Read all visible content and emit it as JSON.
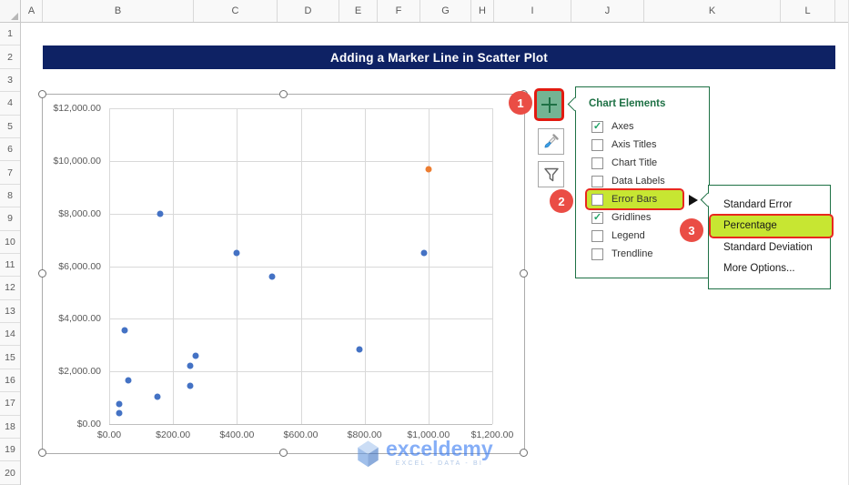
{
  "spreadsheet": {
    "column_headers": [
      "A",
      "B",
      "C",
      "D",
      "E",
      "F",
      "G",
      "H",
      "I",
      "J",
      "K",
      "L"
    ],
    "row_count": 20
  },
  "banner": {
    "title": "Adding a Marker Line in Scatter Plot"
  },
  "chart_data": {
    "type": "scatter",
    "title": "",
    "xlabel": "",
    "ylabel": "",
    "xlim": [
      0,
      1200
    ],
    "ylim": [
      0,
      12000
    ],
    "grid": true,
    "legend": false,
    "x_ticks": [
      "$0.00",
      "$200.00",
      "$400.00",
      "$600.00",
      "$800.00",
      "$1,000.00",
      "$1,200.00"
    ],
    "x_tick_values": [
      0,
      200,
      400,
      600,
      800,
      1000,
      1200
    ],
    "y_ticks": [
      "$0.00",
      "$2,000.00",
      "$4,000.00",
      "$6,000.00",
      "$8,000.00",
      "$10,000.00",
      "$12,000.00"
    ],
    "y_tick_values": [
      0,
      2000,
      4000,
      6000,
      8000,
      10000,
      12000
    ],
    "series": [
      {
        "name": "blue-series",
        "color": "#4472c4",
        "points": [
          [
            30,
            430
          ],
          [
            30,
            770
          ],
          [
            48,
            3550
          ],
          [
            60,
            1650
          ],
          [
            150,
            1050
          ],
          [
            160,
            8000
          ],
          [
            255,
            1450
          ],
          [
            255,
            2200
          ],
          [
            270,
            2600
          ],
          [
            400,
            6500
          ],
          [
            510,
            5600
          ],
          [
            785,
            2850
          ],
          [
            985,
            6500
          ]
        ]
      },
      {
        "name": "orange-point",
        "color": "#ed7d31",
        "points": [
          [
            1000,
            9700
          ]
        ]
      }
    ]
  },
  "side_toolbar": {
    "buttons": [
      {
        "icon": "plus-icon",
        "name": "chart-elements"
      },
      {
        "icon": "brush-icon",
        "name": "chart-styles"
      },
      {
        "icon": "funnel-icon",
        "name": "chart-filters"
      }
    ]
  },
  "chart_elements_menu": {
    "title": "Chart Elements",
    "items": [
      {
        "label": "Axes",
        "checked": true,
        "highlighted": false
      },
      {
        "label": "Axis Titles",
        "checked": false,
        "highlighted": false
      },
      {
        "label": "Chart Title",
        "checked": false,
        "highlighted": false
      },
      {
        "label": "Data Labels",
        "checked": false,
        "highlighted": false
      },
      {
        "label": "Error Bars",
        "checked": false,
        "highlighted": true,
        "has_submenu": true
      },
      {
        "label": "Gridlines",
        "checked": true,
        "highlighted": false
      },
      {
        "label": "Legend",
        "checked": false,
        "highlighted": false
      },
      {
        "label": "Trendline",
        "checked": false,
        "highlighted": false
      }
    ]
  },
  "error_bars_submenu": {
    "items": [
      {
        "label": "Standard Error",
        "highlighted": false
      },
      {
        "label": "Percentage",
        "highlighted": true
      },
      {
        "label": "Standard Deviation",
        "highlighted": false
      },
      {
        "label": "More Options...",
        "highlighted": false
      }
    ]
  },
  "step_badges": [
    {
      "label": "1"
    },
    {
      "label": "2"
    },
    {
      "label": "3"
    }
  ],
  "watermark": {
    "brand": "exceldemy",
    "tagline": "EXCEL - DATA - BI"
  },
  "colors": {
    "banner_bg": "#0e2264",
    "accent_green": "#1e7145",
    "highlight_green": "#c7e632",
    "badge_red": "#ea4d45",
    "outline_red": "#e8281e",
    "point_blue": "#4472c4",
    "point_orange": "#ed7d31"
  }
}
